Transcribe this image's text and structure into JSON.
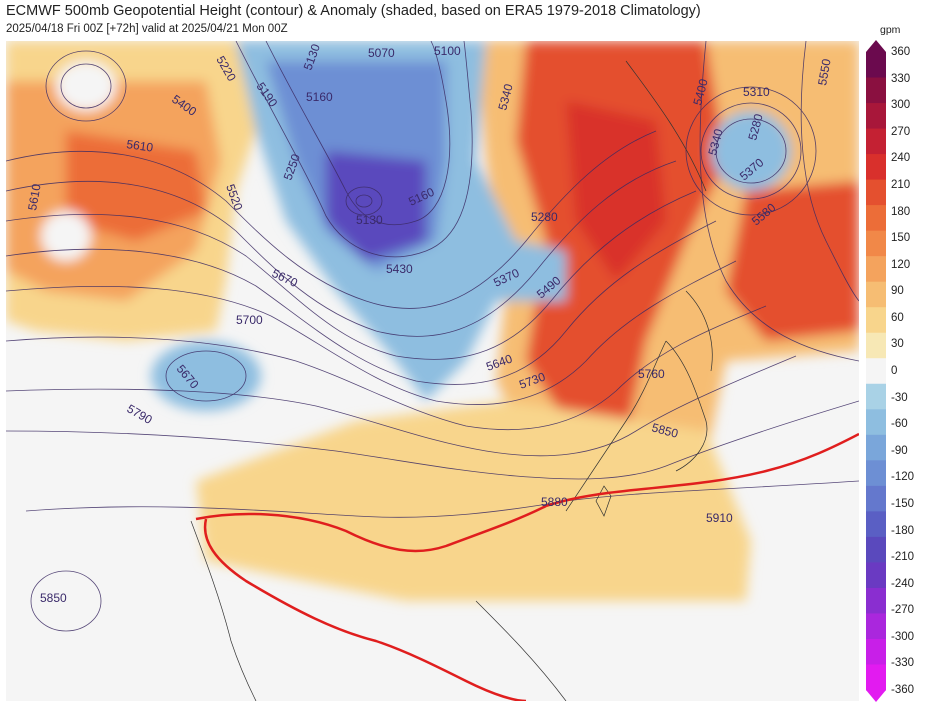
{
  "header": {
    "title": "ECMWF 500mb Geopotential Height (contour) & Anomaly (shaded, based on ERA5 1979-2018 Climatology)",
    "subtitle": "2025/04/18 Fri 00Z [+72h] valid at 2025/04/21 Mon 00Z"
  },
  "colorbar": {
    "unit": "gpm",
    "ticks": [
      "360",
      "330",
      "300",
      "270",
      "240",
      "210",
      "180",
      "150",
      "120",
      "90",
      "60",
      "30",
      "0",
      "-30",
      "-60",
      "-90",
      "-120",
      "-150",
      "-180",
      "-210",
      "-240",
      "-270",
      "-300",
      "-330",
      "-360"
    ],
    "colors": [
      "#6b0a4e",
      "#8a1040",
      "#a8173a",
      "#c42133",
      "#d9302c",
      "#e4502f",
      "#ec6d38",
      "#f18848",
      "#f4a35d",
      "#f6bd73",
      "#f8d58c",
      "#f7e8b5",
      "#f5f5f5",
      "#a9d2e6",
      "#8ebee0",
      "#7aa6da",
      "#6d8fd4",
      "#6478cd",
      "#5a5fc4",
      "#5a49bd",
      "#6a3ac2",
      "#8a2ed0",
      "#aa27dd",
      "#c81fe8",
      "#e21bf0"
    ]
  },
  "contour_labels": {
    "l5070": "5070",
    "l5100": "5100",
    "l5130a": "5130",
    "l5160a": "5160",
    "l5220": "5220",
    "l5190": "5190",
    "l5400a": "5400",
    "l5340a": "5340",
    "l5250": "5250",
    "l5520": "5520",
    "l5610a": "5610",
    "l5610b": "5610",
    "l5160b": "5160",
    "l5130b": "5130",
    "l5280a": "5280",
    "l5430": "5430",
    "l5370a": "5370",
    "l5490": "5490",
    "l5670a": "5670",
    "l5700": "5700",
    "l5670b": "5670",
    "l5790": "5790",
    "l5640": "5640",
    "l5730": "5730",
    "l5760": "5760",
    "l5850a": "5850",
    "l5880": "5880",
    "l5910": "5910",
    "l5850b": "5850",
    "l5310": "5310",
    "l5280b": "5280",
    "l5370b": "5370",
    "l5400b": "5400",
    "l5340b": "5340",
    "l5580": "5580",
    "l5550": "5550"
  }
}
